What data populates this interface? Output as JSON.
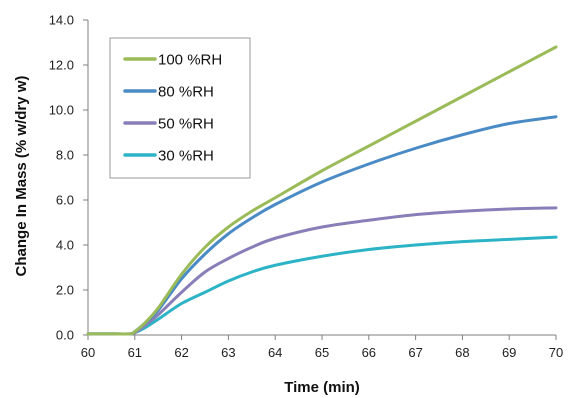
{
  "chart_data": {
    "type": "line",
    "title": "",
    "xlabel": "Time (min)",
    "ylabel": "Change In Mass (% w/dry w)",
    "xlim": [
      60,
      70
    ],
    "ylim": [
      0.0,
      14.0
    ],
    "x_ticks": [
      "60",
      "61",
      "62",
      "63",
      "64",
      "65",
      "66",
      "67",
      "68",
      "69",
      "70"
    ],
    "y_ticks": [
      "0.0",
      "2.0",
      "4.0",
      "6.0",
      "8.0",
      "10.0",
      "12.0",
      "14.0"
    ],
    "grid": false,
    "legend_position": "top-left",
    "x": [
      60,
      60.5,
      60.9,
      61,
      61.2,
      61.5,
      62,
      62.5,
      63,
      63.5,
      64,
      65,
      66,
      67,
      68,
      69,
      70
    ],
    "series": [
      {
        "name": "100 %RH",
        "color": "#9bbb59",
        "values": [
          0.05,
          0.05,
          0.05,
          0.15,
          0.5,
          1.2,
          2.7,
          3.9,
          4.8,
          5.5,
          6.1,
          7.3,
          8.4,
          9.5,
          10.6,
          11.7,
          12.8
        ]
      },
      {
        "name": "80 %RH",
        "color": "#4a8bc6",
        "values": [
          0.05,
          0.05,
          0.05,
          0.15,
          0.5,
          1.1,
          2.5,
          3.6,
          4.5,
          5.2,
          5.8,
          6.8,
          7.6,
          8.3,
          8.9,
          9.4,
          9.7
        ]
      },
      {
        "name": "50 %RH",
        "color": "#8a7eb8",
        "values": [
          0.05,
          0.05,
          0.05,
          0.1,
          0.4,
          0.9,
          1.9,
          2.8,
          3.4,
          3.9,
          4.3,
          4.8,
          5.1,
          5.35,
          5.5,
          5.6,
          5.65
        ]
      },
      {
        "name": "30 %RH",
        "color": "#2cb3c6",
        "values": [
          0.05,
          0.05,
          0.05,
          0.1,
          0.3,
          0.7,
          1.4,
          1.9,
          2.4,
          2.8,
          3.1,
          3.5,
          3.8,
          4.0,
          4.15,
          4.25,
          4.35
        ]
      }
    ]
  }
}
